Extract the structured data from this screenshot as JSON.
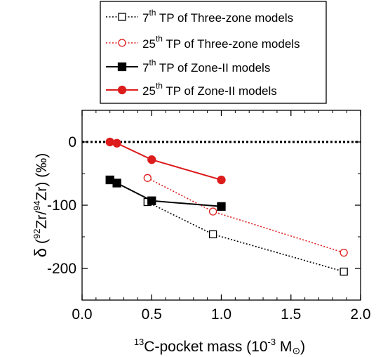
{
  "chart_data": {
    "type": "line",
    "xlabel": {
      "sup": "13",
      "main": "C-pocket mass (10",
      "exp": "-3",
      "unit": " M",
      "sub": "⊙",
      "close": ")"
    },
    "ylabel": {
      "delta": "δ",
      "open": " (",
      "sup1": "92",
      "mid": "Zr/",
      "sup2": "94",
      "end": "Zr) (‰)"
    },
    "xlim": [
      0,
      2.0
    ],
    "ylim": [
      -250,
      50
    ],
    "xticks": [
      {
        "v": 0.0,
        "label": "0.0"
      },
      {
        "v": 0.5,
        "label": "0.5"
      },
      {
        "v": 1.0,
        "label": "1.0"
      },
      {
        "v": 1.5,
        "label": "1.5"
      },
      {
        "v": 2.0,
        "label": "2.0"
      }
    ],
    "yticks": [
      {
        "v": 0,
        "label": "0"
      },
      {
        "v": -100,
        "label": "-100"
      },
      {
        "v": -200,
        "label": "-200"
      }
    ],
    "reference_line": {
      "y": 0,
      "style": "dotted",
      "color": "#000000"
    },
    "grid": false,
    "legend_position": "top",
    "series": [
      {
        "name_parts": [
          "7",
          "th",
          " TP of Three-zone models"
        ],
        "color": "#000000",
        "line": "dotted",
        "marker": "square",
        "filled": false,
        "x": [
          0.47,
          0.94,
          1.88
        ],
        "y": [
          -95,
          -146,
          -205
        ]
      },
      {
        "name_parts": [
          "25",
          "th",
          " TP of Three-zone models"
        ],
        "color": "#dd1c1c",
        "line": "dotted",
        "marker": "circle",
        "filled": false,
        "x": [
          0.47,
          0.94,
          1.88
        ],
        "y": [
          -57,
          -110,
          -175
        ]
      },
      {
        "name_parts": [
          "7",
          "th",
          " TP of Zone-II models"
        ],
        "color": "#000000",
        "line": "solid",
        "marker": "square",
        "filled": true,
        "x": [
          0.2,
          0.25,
          0.5,
          1.0
        ],
        "y": [
          -60,
          -65,
          -93,
          -102
        ]
      },
      {
        "name_parts": [
          "25",
          "th",
          " TP of Zone-II models"
        ],
        "color": "#dd1c1c",
        "line": "solid",
        "marker": "circle",
        "filled": true,
        "x": [
          0.2,
          0.25,
          0.5,
          1.0
        ],
        "y": [
          0,
          -2,
          -28,
          -60
        ]
      }
    ]
  }
}
